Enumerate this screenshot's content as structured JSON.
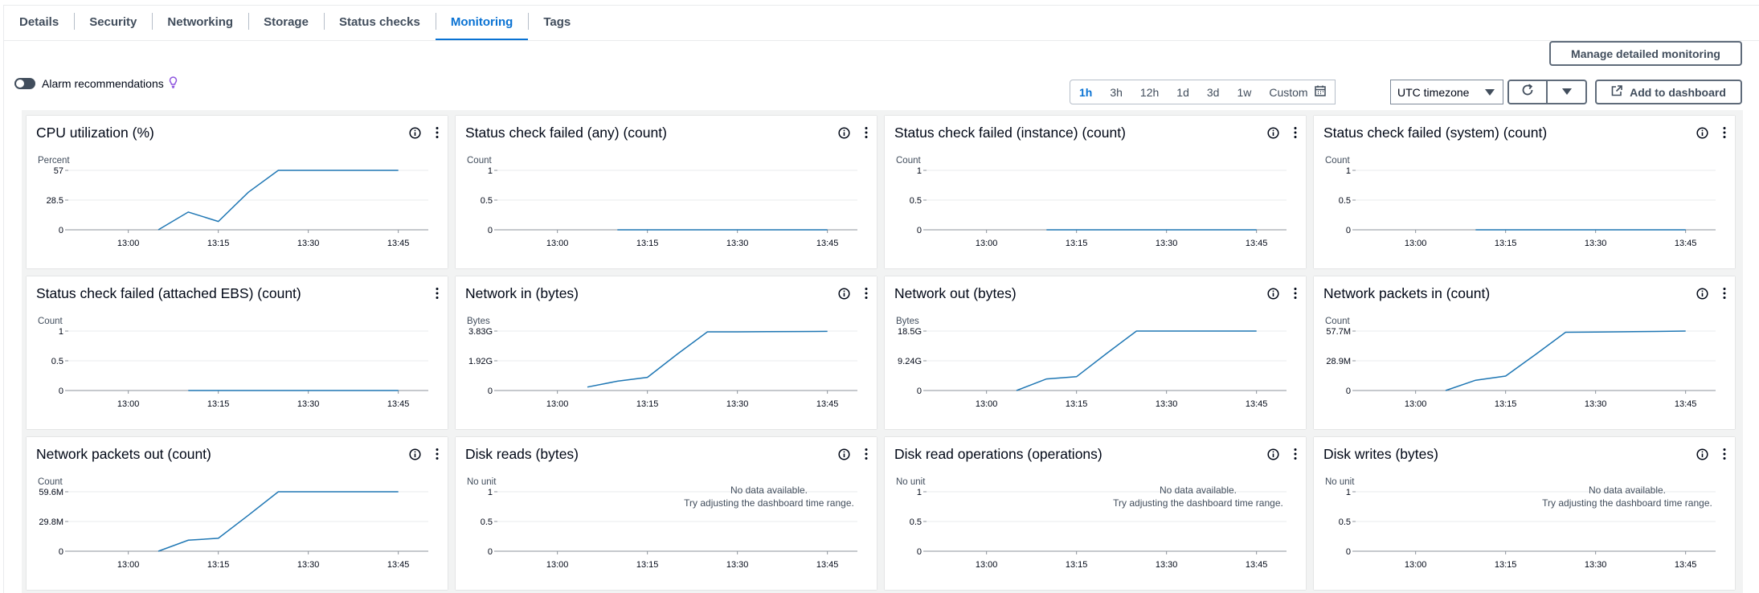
{
  "tabs": [
    {
      "label": "Details",
      "active": false
    },
    {
      "label": "Security",
      "active": false
    },
    {
      "label": "Networking",
      "active": false
    },
    {
      "label": "Storage",
      "active": false
    },
    {
      "label": "Status checks",
      "active": false
    },
    {
      "label": "Monitoring",
      "active": true
    },
    {
      "label": "Tags",
      "active": false
    }
  ],
  "toolbar": {
    "manage_label": "Manage detailed monitoring",
    "alarm_label": "Alarm recommendations",
    "alarm_enabled": false,
    "ranges": [
      "1h",
      "3h",
      "12h",
      "1d",
      "3d",
      "1w"
    ],
    "selected_range": "1h",
    "custom_label": "Custom",
    "timezone": "UTC timezone",
    "add_dashboard_label": "Add to dashboard"
  },
  "colors": {
    "series": "#1f77b4",
    "accent": "#0972d3"
  },
  "no_data": {
    "line1": "No data available.",
    "line2": "Try adjusting the dashboard time range."
  },
  "chart_data": [
    {
      "title": "CPU utilization (%)",
      "type": "line",
      "unit": "Percent",
      "info": true,
      "yticks": [
        "57",
        "28.5",
        "0"
      ],
      "ylim": [
        0,
        57
      ],
      "xticks": [
        "13:00",
        "13:15",
        "13:30",
        "13:45"
      ],
      "x": [
        "13:05",
        "13:10",
        "13:15",
        "13:20",
        "13:25",
        "13:30",
        "13:35",
        "13:40",
        "13:45"
      ],
      "values": [
        0,
        17,
        8,
        36,
        57,
        57,
        57,
        57,
        57
      ]
    },
    {
      "title": "Status check failed (any) (count)",
      "type": "line",
      "unit": "Count",
      "info": true,
      "yticks": [
        "1",
        "0.5",
        "0"
      ],
      "ylim": [
        0,
        1
      ],
      "xticks": [
        "13:00",
        "13:15",
        "13:30",
        "13:45"
      ],
      "x": [
        "13:10",
        "13:45"
      ],
      "values": [
        0,
        0
      ]
    },
    {
      "title": "Status check failed (instance) (count)",
      "type": "line",
      "unit": "Count",
      "info": true,
      "yticks": [
        "1",
        "0.5",
        "0"
      ],
      "ylim": [
        0,
        1
      ],
      "xticks": [
        "13:00",
        "13:15",
        "13:30",
        "13:45"
      ],
      "x": [
        "13:10",
        "13:45"
      ],
      "values": [
        0,
        0
      ]
    },
    {
      "title": "Status check failed (system) (count)",
      "type": "line",
      "unit": "Count",
      "info": true,
      "yticks": [
        "1",
        "0.5",
        "0"
      ],
      "ylim": [
        0,
        1
      ],
      "xticks": [
        "13:00",
        "13:15",
        "13:30",
        "13:45"
      ],
      "x": [
        "13:10",
        "13:45"
      ],
      "values": [
        0,
        0
      ]
    },
    {
      "title": "Status check failed (attached EBS) (count)",
      "type": "line",
      "unit": "Count",
      "info": false,
      "yticks": [
        "1",
        "0.5",
        "0"
      ],
      "ylim": [
        0,
        1
      ],
      "xticks": [
        "13:00",
        "13:15",
        "13:30",
        "13:45"
      ],
      "x": [
        "13:10",
        "13:45"
      ],
      "values": [
        0,
        0
      ]
    },
    {
      "title": "Network in (bytes)",
      "type": "line",
      "unit": "Bytes",
      "info": true,
      "yticks": [
        "3.83G",
        "1.92G",
        "0"
      ],
      "ylim": [
        0,
        3.83
      ],
      "xticks": [
        "13:00",
        "13:15",
        "13:30",
        "13:45"
      ],
      "x": [
        "13:05",
        "13:10",
        "13:15",
        "13:20",
        "13:25",
        "13:30",
        "13:35",
        "13:40",
        "13:45"
      ],
      "values": [
        0.22,
        0.6,
        0.85,
        2.35,
        3.78,
        3.78,
        3.79,
        3.8,
        3.81
      ]
    },
    {
      "title": "Network out (bytes)",
      "type": "line",
      "unit": "Bytes",
      "info": true,
      "yticks": [
        "18.5G",
        "9.24G",
        "0"
      ],
      "ylim": [
        0,
        18.5
      ],
      "xticks": [
        "13:00",
        "13:15",
        "13:30",
        "13:45"
      ],
      "x": [
        "13:05",
        "13:10",
        "13:15",
        "13:20",
        "13:25",
        "13:30",
        "13:35",
        "13:40",
        "13:45"
      ],
      "values": [
        0,
        3.6,
        4.3,
        11.5,
        18.5,
        18.5,
        18.5,
        18.5,
        18.5
      ]
    },
    {
      "title": "Network packets in (count)",
      "type": "line",
      "unit": "Count",
      "info": true,
      "yticks": [
        "57.7M",
        "28.9M",
        "0"
      ],
      "ylim": [
        0,
        57.7
      ],
      "xticks": [
        "13:00",
        "13:15",
        "13:30",
        "13:45"
      ],
      "x": [
        "13:05",
        "13:10",
        "13:15",
        "13:20",
        "13:25",
        "13:30",
        "13:35",
        "13:40",
        "13:45"
      ],
      "values": [
        0,
        10,
        14,
        35,
        56.5,
        56.7,
        57,
        57.3,
        57.7
      ]
    },
    {
      "title": "Network packets out (count)",
      "type": "line",
      "unit": "Count",
      "info": true,
      "yticks": [
        "59.6M",
        "29.8M",
        "0"
      ],
      "ylim": [
        0,
        59.6
      ],
      "xticks": [
        "13:00",
        "13:15",
        "13:30",
        "13:45"
      ],
      "x": [
        "13:05",
        "13:10",
        "13:15",
        "13:20",
        "13:25",
        "13:30",
        "13:35",
        "13:40",
        "13:45"
      ],
      "values": [
        0,
        11,
        13,
        36,
        59.6,
        59.6,
        59.6,
        59.6,
        59.6
      ]
    },
    {
      "title": "Disk reads (bytes)",
      "type": "line",
      "unit": "No unit",
      "info": true,
      "no_data": true,
      "yticks": [
        "1",
        "0.5",
        "0"
      ],
      "ylim": [
        0,
        1
      ],
      "xticks": [
        "13:00",
        "13:15",
        "13:30",
        "13:45"
      ],
      "x": [],
      "values": []
    },
    {
      "title": "Disk read operations (operations)",
      "type": "line",
      "unit": "No unit",
      "info": true,
      "no_data": true,
      "yticks": [
        "1",
        "0.5",
        "0"
      ],
      "ylim": [
        0,
        1
      ],
      "xticks": [
        "13:00",
        "13:15",
        "13:30",
        "13:45"
      ],
      "x": [],
      "values": []
    },
    {
      "title": "Disk writes (bytes)",
      "type": "line",
      "unit": "No unit",
      "info": true,
      "no_data": true,
      "yticks": [
        "1",
        "0.5",
        "0"
      ],
      "ylim": [
        0,
        1
      ],
      "xticks": [
        "13:00",
        "13:15",
        "13:30",
        "13:45"
      ],
      "x": [],
      "values": []
    }
  ]
}
